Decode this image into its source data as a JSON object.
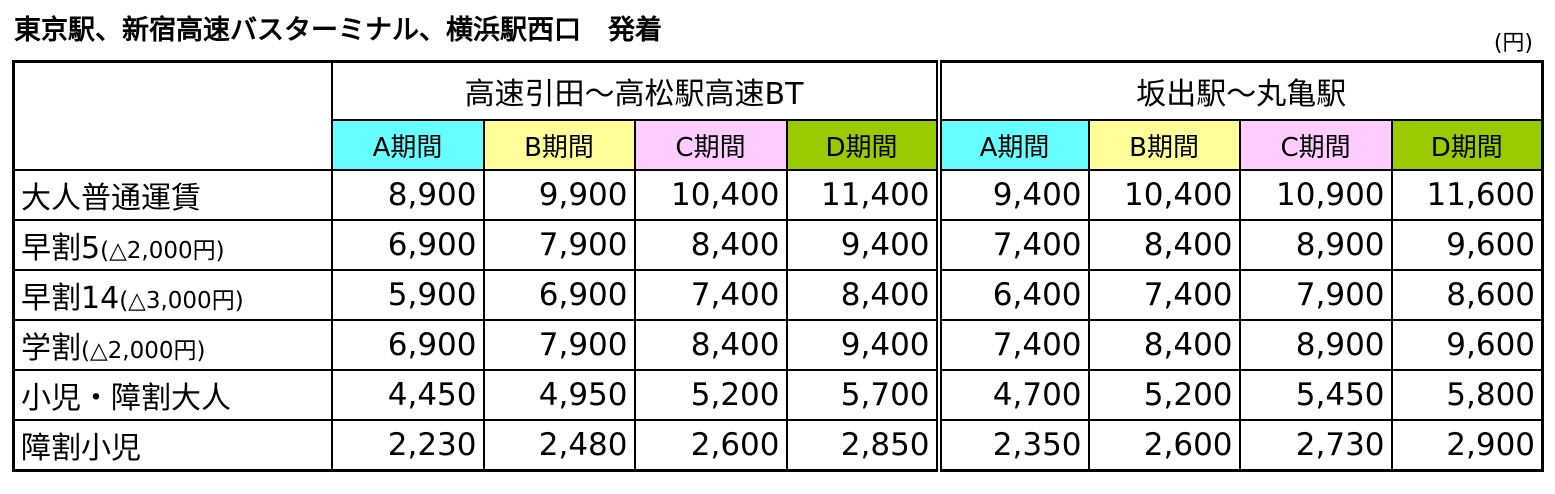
{
  "title": "東京駅、新宿高速バスターミナル、横浜駅西口　発着",
  "unit": "(円)",
  "routes": [
    "高速引田～高松駅高速BT",
    "坂出駅～丸亀駅"
  ],
  "periods": [
    {
      "label": "A期間",
      "color": "#66ffff"
    },
    {
      "label": "B期間",
      "color": "#ffff99"
    },
    {
      "label": "C期間",
      "color": "#ffccff"
    },
    {
      "label": "D期間",
      "color": "#99cc00"
    }
  ],
  "rows": [
    {
      "label": "大人普通運賃",
      "note": "",
      "values": [
        "8,900",
        "9,900",
        "10,400",
        "11,400",
        "9,400",
        "10,400",
        "10,900",
        "11,600"
      ]
    },
    {
      "label": "早割5",
      "note": "(△2,000円)",
      "values": [
        "6,900",
        "7,900",
        "8,400",
        "9,400",
        "7,400",
        "8,400",
        "8,900",
        "9,600"
      ]
    },
    {
      "label": "早割14",
      "note": "(△3,000円)",
      "values": [
        "5,900",
        "6,900",
        "7,400",
        "8,400",
        "6,400",
        "7,400",
        "7,900",
        "8,600"
      ]
    },
    {
      "label": "学割",
      "note": "(△2,000円)",
      "values": [
        "6,900",
        "7,900",
        "8,400",
        "9,400",
        "7,400",
        "8,400",
        "8,900",
        "9,600"
      ]
    },
    {
      "label": "小児・障割大人",
      "note": "",
      "values": [
        "4,450",
        "4,950",
        "5,200",
        "5,700",
        "4,700",
        "5,200",
        "5,450",
        "5,800"
      ]
    },
    {
      "label": "障割小児",
      "note": "",
      "values": [
        "2,230",
        "2,480",
        "2,600",
        "2,850",
        "2,350",
        "2,600",
        "2,730",
        "2,900"
      ]
    }
  ]
}
